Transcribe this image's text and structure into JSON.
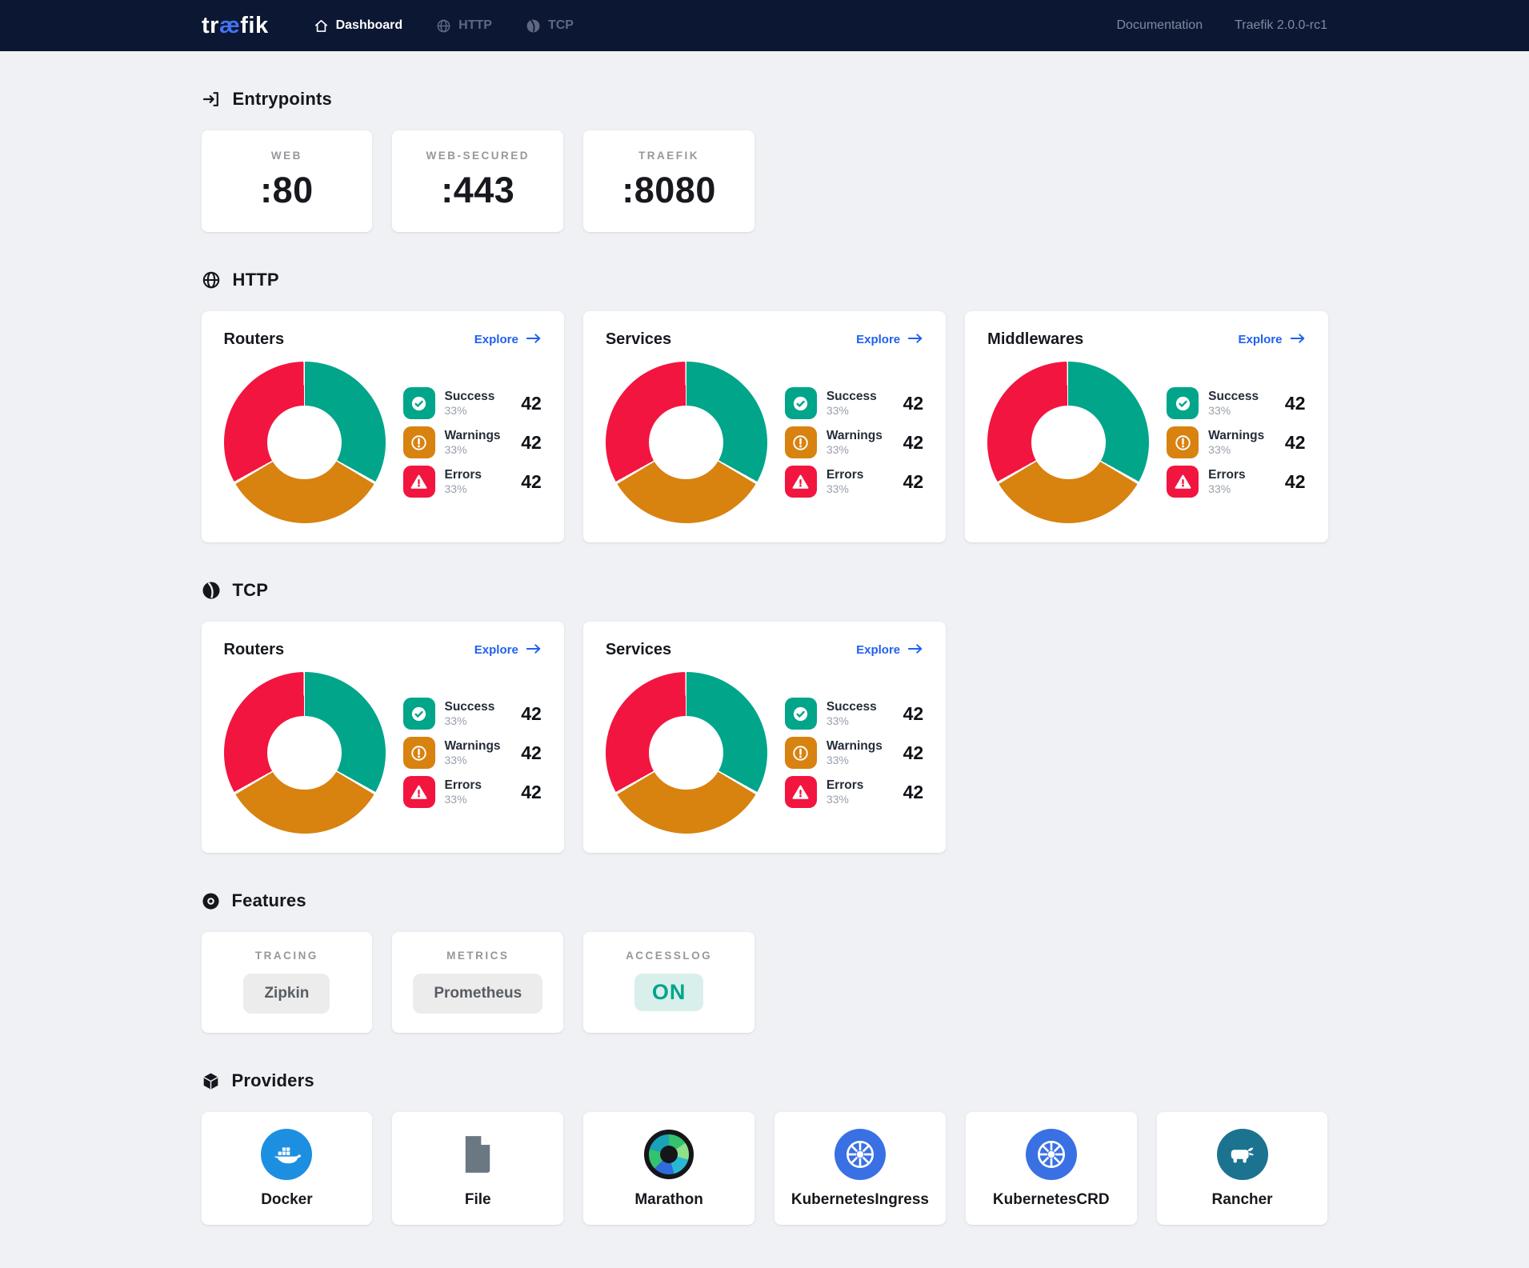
{
  "ui": {
    "explore": "Explore"
  },
  "colors": {
    "success": "#00a58a",
    "warning": "#d8820f",
    "error": "#f2153f",
    "accent": "#2160ee",
    "navbar_bg": "#0c1733",
    "logo_accent": "#4273f0",
    "on_chip_bg": "#d9efeb"
  },
  "navbar": {
    "logo": {
      "pre": "tr",
      "mid": "æ",
      "post": "fik"
    },
    "items": [
      {
        "label": "Dashboard",
        "icon": "home-icon",
        "active": true
      },
      {
        "label": "HTTP",
        "icon": "globe-icon",
        "active": false
      },
      {
        "label": "TCP",
        "icon": "ball-icon",
        "active": false
      }
    ],
    "doc_link": "Documentation",
    "version": "Traefik 2.0.0-rc1"
  },
  "sections": {
    "entrypoints": {
      "title": "Entrypoints",
      "cards": [
        {
          "label": "WEB",
          "value": ":80"
        },
        {
          "label": "WEB-SECURED",
          "value": ":443"
        },
        {
          "label": "TRAEFIK",
          "value": ":8080"
        }
      ]
    },
    "http": {
      "title": "HTTP",
      "cards": [
        {
          "title": "Routers",
          "stats": [
            {
              "label": "Success",
              "pct": "33%",
              "value": "42",
              "key": "success"
            },
            {
              "label": "Warnings",
              "pct": "33%",
              "value": "42",
              "key": "warning"
            },
            {
              "label": "Errors",
              "pct": "33%",
              "value": "42",
              "key": "error"
            }
          ]
        },
        {
          "title": "Services",
          "stats": [
            {
              "label": "Success",
              "pct": "33%",
              "value": "42",
              "key": "success"
            },
            {
              "label": "Warnings",
              "pct": "33%",
              "value": "42",
              "key": "warning"
            },
            {
              "label": "Errors",
              "pct": "33%",
              "value": "42",
              "key": "error"
            }
          ]
        },
        {
          "title": "Middlewares",
          "stats": [
            {
              "label": "Success",
              "pct": "33%",
              "value": "42",
              "key": "success"
            },
            {
              "label": "Warnings",
              "pct": "33%",
              "value": "42",
              "key": "warning"
            },
            {
              "label": "Errors",
              "pct": "33%",
              "value": "42",
              "key": "error"
            }
          ]
        }
      ]
    },
    "tcp": {
      "title": "TCP",
      "cards": [
        {
          "title": "Routers",
          "stats": [
            {
              "label": "Success",
              "pct": "33%",
              "value": "42",
              "key": "success"
            },
            {
              "label": "Warnings",
              "pct": "33%",
              "value": "42",
              "key": "warning"
            },
            {
              "label": "Errors",
              "pct": "33%",
              "value": "42",
              "key": "error"
            }
          ]
        },
        {
          "title": "Services",
          "stats": [
            {
              "label": "Success",
              "pct": "33%",
              "value": "42",
              "key": "success"
            },
            {
              "label": "Warnings",
              "pct": "33%",
              "value": "42",
              "key": "warning"
            },
            {
              "label": "Errors",
              "pct": "33%",
              "value": "42",
              "key": "error"
            }
          ]
        }
      ]
    },
    "features": {
      "title": "Features",
      "cards": [
        {
          "label": "TRACING",
          "value": "Zipkin",
          "state": "muted"
        },
        {
          "label": "METRICS",
          "value": "Prometheus",
          "state": "muted"
        },
        {
          "label": "ACCESSLOG",
          "value": "ON",
          "state": "on"
        }
      ]
    },
    "providers": {
      "title": "Providers",
      "items": [
        {
          "label": "Docker",
          "icon": "docker"
        },
        {
          "label": "File",
          "icon": "file"
        },
        {
          "label": "Marathon",
          "icon": "marathon"
        },
        {
          "label": "KubernetesIngress",
          "icon": "kubernetes"
        },
        {
          "label": "KubernetesCRD",
          "icon": "kubernetes"
        },
        {
          "label": "Rancher",
          "icon": "rancher"
        }
      ]
    }
  },
  "chart_data": [
    {
      "type": "pie",
      "section": "HTTP",
      "card": "Routers",
      "labels": [
        "Success",
        "Warnings",
        "Errors"
      ],
      "percent": [
        33,
        33,
        33
      ],
      "counts": [
        42,
        42,
        42
      ],
      "colors": [
        "#00a58a",
        "#d8820f",
        "#f2153f"
      ]
    },
    {
      "type": "pie",
      "section": "HTTP",
      "card": "Services",
      "labels": [
        "Success",
        "Warnings",
        "Errors"
      ],
      "percent": [
        33,
        33,
        33
      ],
      "counts": [
        42,
        42,
        42
      ],
      "colors": [
        "#00a58a",
        "#d8820f",
        "#f2153f"
      ]
    },
    {
      "type": "pie",
      "section": "HTTP",
      "card": "Middlewares",
      "labels": [
        "Success",
        "Warnings",
        "Errors"
      ],
      "percent": [
        33,
        33,
        33
      ],
      "counts": [
        42,
        42,
        42
      ],
      "colors": [
        "#00a58a",
        "#d8820f",
        "#f2153f"
      ]
    },
    {
      "type": "pie",
      "section": "TCP",
      "card": "Routers",
      "labels": [
        "Success",
        "Warnings",
        "Errors"
      ],
      "percent": [
        33,
        33,
        33
      ],
      "counts": [
        42,
        42,
        42
      ],
      "colors": [
        "#00a58a",
        "#d8820f",
        "#f2153f"
      ]
    },
    {
      "type": "pie",
      "section": "TCP",
      "card": "Services",
      "labels": [
        "Success",
        "Warnings",
        "Errors"
      ],
      "percent": [
        33,
        33,
        33
      ],
      "counts": [
        42,
        42,
        42
      ],
      "colors": [
        "#00a58a",
        "#d8820f",
        "#f2153f"
      ]
    }
  ]
}
